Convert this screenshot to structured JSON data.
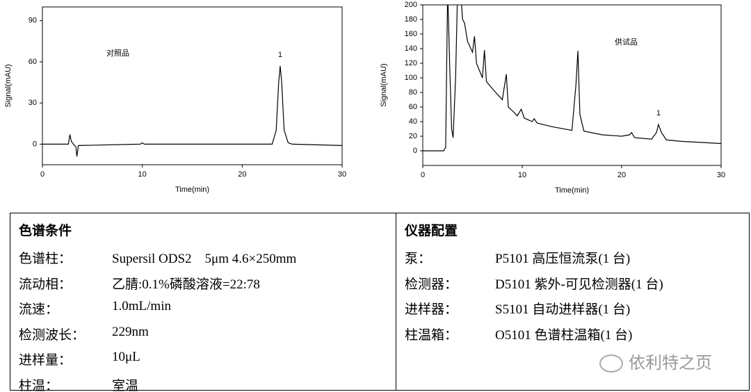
{
  "chart_data": [
    {
      "type": "line",
      "annotation": "对照品",
      "x_label": "Time(min)",
      "y_label": "Signal(mAU)",
      "xlim": [
        0,
        30
      ],
      "ylim": [
        -15,
        100
      ],
      "xticks": [
        0,
        10,
        20,
        30
      ],
      "yticks": [
        0,
        30,
        60,
        90
      ],
      "peak_label": {
        "text": "1",
        "x": 23.8,
        "y": 57
      },
      "series": [
        {
          "color": "#000000",
          "x": [
            0,
            2.6,
            2.75,
            2.9,
            3.1,
            3.35,
            3.45,
            3.6,
            9.8,
            10,
            10.2,
            23,
            23.4,
            23.65,
            23.8,
            23.95,
            24.2,
            24.6,
            25,
            30
          ],
          "values": [
            0,
            0,
            7,
            2,
            0,
            -2,
            -9,
            -1,
            0,
            1,
            0,
            0,
            10,
            45,
            57,
            45,
            10,
            1,
            0,
            -1
          ]
        }
      ]
    },
    {
      "type": "line",
      "annotation": "供试品",
      "x_label": "Time(min)",
      "y_label": "Signal(mAU)",
      "xlim": [
        0,
        30
      ],
      "ylim": [
        -20,
        200
      ],
      "xticks": [
        0,
        10,
        20,
        30
      ],
      "yticks": [
        0,
        20,
        40,
        60,
        80,
        100,
        120,
        140,
        160,
        180,
        200
      ],
      "peak_label": {
        "text": "1",
        "x": 23.7,
        "y": 36
      },
      "series": [
        {
          "color": "#000000",
          "x": [
            0,
            2.1,
            2.3,
            2.5,
            2.7,
            2.9,
            3.05,
            3.3,
            3.5,
            3.9,
            4.0,
            4.2,
            4.5,
            5.0,
            5.2,
            5.4,
            6.0,
            6.2,
            6.4,
            7.0,
            8.0,
            8.4,
            8.6,
            9.0,
            9.5,
            9.9,
            10.2,
            11,
            11.2,
            11.5,
            13,
            15,
            15.4,
            15.6,
            15.8,
            16.2,
            18,
            20,
            20.8,
            21,
            21.3,
            23,
            23.5,
            23.7,
            24,
            24.5,
            26,
            30
          ],
          "values": [
            0,
            0,
            5,
            220,
            120,
            30,
            18,
            100,
            220,
            200,
            180,
            175,
            150,
            135,
            157,
            120,
            100,
            138,
            95,
            85,
            70,
            105,
            60,
            55,
            48,
            57,
            45,
            40,
            44,
            38,
            33,
            28,
            90,
            137,
            50,
            27,
            22,
            20,
            22,
            25,
            18,
            16,
            25,
            36,
            25,
            15,
            13,
            10
          ]
        }
      ]
    }
  ],
  "table": {
    "left": {
      "title": "色谱条件",
      "rows": [
        [
          "色谱柱：",
          "Supersil ODS2　5μm 4.6×250mm"
        ],
        [
          "流动相：",
          "乙腈:0.1%磷酸溶液=22:78"
        ],
        [
          "流速：",
          "1.0mL/min"
        ],
        [
          "检测波长：",
          "229nm"
        ],
        [
          "进样量：",
          "10μL"
        ],
        [
          "柱温：",
          "室温"
        ]
      ]
    },
    "right": {
      "title": "仪器配置",
      "rows": [
        [
          "泵：",
          "P5101 高压恒流泵(1 台)"
        ],
        [
          "检测器：",
          "D5101 紫外-可见检测器(1 台)"
        ],
        [
          "进样器：",
          "S5101 自动进样器(1 台)"
        ],
        [
          "柱温箱：",
          "O5101 色谱柱温箱(1 台)"
        ]
      ]
    }
  },
  "watermark": "依利特之页"
}
